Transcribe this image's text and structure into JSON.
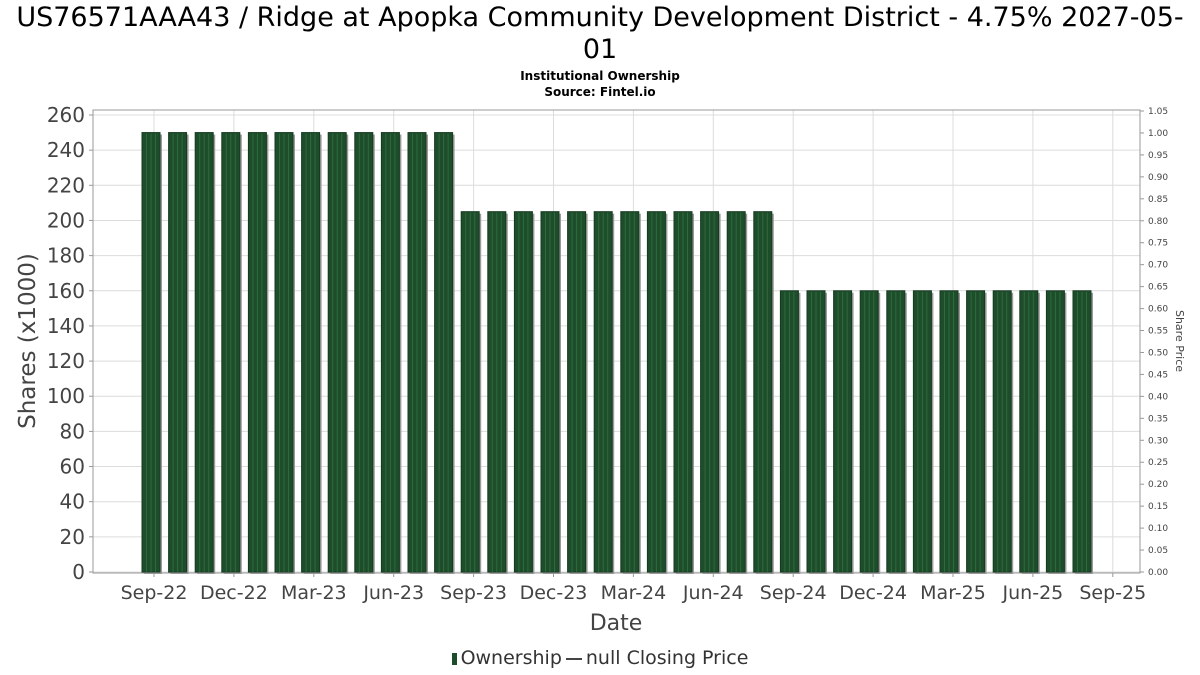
{
  "title": "US76571AAA43 / Ridge at Apopka Community Development District - 4.75% 2027-05-01",
  "subtitle_line1": "Institutional Ownership",
  "subtitle_line2": "Source: Fintel.io",
  "colors": {
    "bar": "#1e4d2b",
    "bar_shadow": "#9a9a9a",
    "grid": "#dcdcdc"
  },
  "legend": {
    "ownership": "Ownership",
    "price": "null Closing Price"
  },
  "chart_data": {
    "type": "bar",
    "xlabel": "Date",
    "ylabel": "Shares (x1000)",
    "y2label": "Share Price",
    "ylim": [
      0,
      260
    ],
    "y2lim": [
      0,
      1.05
    ],
    "yticks": [
      "0",
      "20",
      "40",
      "60",
      "80",
      "100",
      "120",
      "140",
      "160",
      "180",
      "200",
      "220",
      "240",
      "260"
    ],
    "y2ticks": [
      "0.00",
      "0.05",
      "0.10",
      "0.15",
      "0.20",
      "0.25",
      "0.30",
      "0.35",
      "0.40",
      "0.45",
      "0.50",
      "0.55",
      "0.60",
      "0.65",
      "0.70",
      "0.75",
      "0.80",
      "0.85",
      "0.90",
      "0.95",
      "1.00",
      "1.05"
    ],
    "xticks": [
      "Sep-22",
      "Dec-22",
      "Mar-23",
      "Jun-23",
      "Sep-23",
      "Dec-23",
      "Mar-24",
      "Jun-24",
      "Sep-24",
      "Dec-24",
      "Mar-25",
      "Jun-25",
      "Sep-25"
    ],
    "grid": true,
    "legend_position": "bottom",
    "series": [
      {
        "name": "Ownership",
        "values": [
          250,
          250,
          250,
          250,
          250,
          250,
          250,
          250,
          250,
          250,
          250,
          250,
          205,
          205,
          205,
          205,
          205,
          205,
          205,
          205,
          205,
          205,
          205,
          205,
          160,
          160,
          160,
          160,
          160,
          160,
          160,
          160,
          160,
          160,
          160,
          160
        ]
      }
    ]
  }
}
